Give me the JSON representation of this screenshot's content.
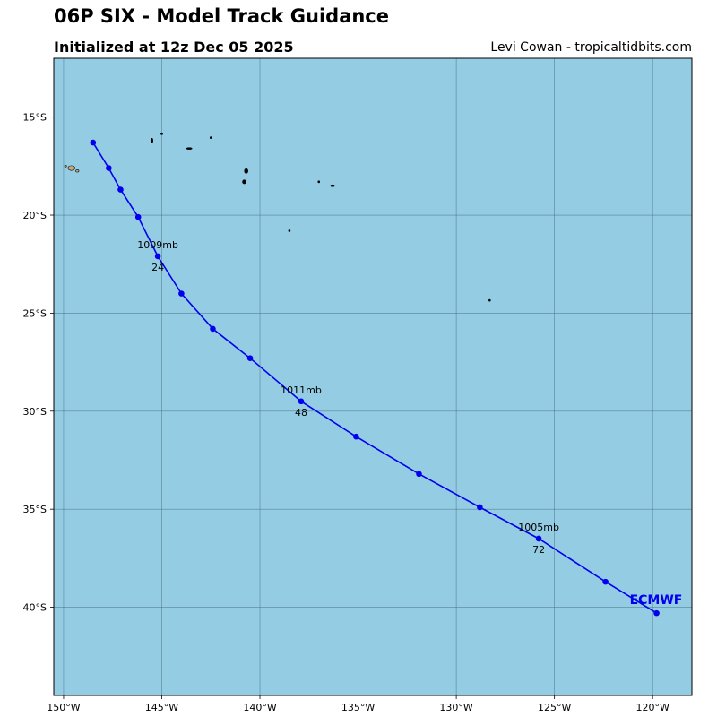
{
  "header": {
    "title": "06P SIX - Model Track Guidance",
    "subtitle": "Initialized at 12z Dec 05 2025",
    "credit": "Levi Cowan - tropicaltidbits.com"
  },
  "map": {
    "ocean_color": "#94cde3",
    "grid_color": "#4a6e80",
    "track_color": "#0000ee",
    "lon_range": [
      -150.5,
      -118
    ],
    "lat_range": [
      -44.5,
      -12
    ]
  },
  "axes": {
    "lon_ticks": [
      {
        "value": -150,
        "label": "150°W"
      },
      {
        "value": -145,
        "label": "145°W"
      },
      {
        "value": -140,
        "label": "140°W"
      },
      {
        "value": -135,
        "label": "135°W"
      },
      {
        "value": -130,
        "label": "130°W"
      },
      {
        "value": -125,
        "label": "125°W"
      },
      {
        "value": -120,
        "label": "120°W"
      }
    ],
    "lat_ticks": [
      {
        "value": -15,
        "label": "15°S"
      },
      {
        "value": -20,
        "label": "20°S"
      },
      {
        "value": -25,
        "label": "25°S"
      },
      {
        "value": -30,
        "label": "30°S"
      },
      {
        "value": -35,
        "label": "35°S"
      },
      {
        "value": -40,
        "label": "40°S"
      }
    ]
  },
  "track": {
    "model": "ECMWF",
    "points": [
      {
        "lon": -148.5,
        "lat": -16.3
      },
      {
        "lon": -147.7,
        "lat": -17.6
      },
      {
        "lon": -147.1,
        "lat": -18.7
      },
      {
        "lon": -146.2,
        "lat": -20.1
      },
      {
        "lon": -145.2,
        "lat": -22.1,
        "pressure": "1009mb",
        "hour": "24"
      },
      {
        "lon": -144.0,
        "lat": -24.0
      },
      {
        "lon": -142.4,
        "lat": -25.8
      },
      {
        "lon": -140.5,
        "lat": -27.3
      },
      {
        "lon": -137.9,
        "lat": -29.5,
        "pressure": "1011mb",
        "hour": "48"
      },
      {
        "lon": -135.1,
        "lat": -31.3
      },
      {
        "lon": -131.9,
        "lat": -33.2
      },
      {
        "lon": -128.8,
        "lat": -34.9
      },
      {
        "lon": -125.8,
        "lat": -36.5,
        "pressure": "1005mb",
        "hour": "72"
      },
      {
        "lon": -122.4,
        "lat": -38.7
      },
      {
        "lon": -119.8,
        "lat": -40.3
      }
    ]
  },
  "islands": [
    {
      "lon": -149.6,
      "lat": -17.6,
      "rx": 0.18,
      "ry": 0.12,
      "fill": "#c9a97a"
    },
    {
      "lon": -149.3,
      "lat": -17.75,
      "rx": 0.08,
      "ry": 0.06,
      "fill": "#c9a97a"
    },
    {
      "lon": -149.9,
      "lat": -17.5,
      "rx": 0.05,
      "ry": 0.04,
      "fill": "#c9a97a"
    },
    {
      "lon": -145.5,
      "lat": -16.2,
      "rx": 0.05,
      "ry": 0.12,
      "fill": "#000"
    },
    {
      "lon": -145.0,
      "lat": -15.85,
      "rx": 0.06,
      "ry": 0.05,
      "fill": "#000"
    },
    {
      "lon": -143.6,
      "lat": -16.6,
      "rx": 0.14,
      "ry": 0.04,
      "fill": "#000"
    },
    {
      "lon": -142.5,
      "lat": -16.05,
      "rx": 0.04,
      "ry": 0.04,
      "fill": "#000"
    },
    {
      "lon": -140.7,
      "lat": -17.75,
      "rx": 0.09,
      "ry": 0.12,
      "fill": "#000"
    },
    {
      "lon": -140.8,
      "lat": -18.3,
      "rx": 0.09,
      "ry": 0.1,
      "fill": "#000"
    },
    {
      "lon": -138.5,
      "lat": -20.8,
      "rx": 0.03,
      "ry": 0.05,
      "fill": "#000"
    },
    {
      "lon": -137.0,
      "lat": -18.3,
      "rx": 0.04,
      "ry": 0.05,
      "fill": "#000"
    },
    {
      "lon": -136.3,
      "lat": -18.5,
      "rx": 0.1,
      "ry": 0.04,
      "fill": "#000"
    },
    {
      "lon": -128.3,
      "lat": -24.35,
      "rx": 0.04,
      "ry": 0.05,
      "fill": "#000"
    }
  ]
}
